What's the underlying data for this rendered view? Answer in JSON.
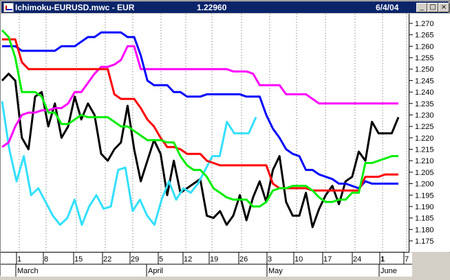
{
  "window": {
    "title": "Ichimoku-EURUSD.mwc - EUR",
    "last_price": "1.22960",
    "date": "6/4/04",
    "buttons": {
      "minimize": "_",
      "maximize": "□",
      "close": "×"
    }
  },
  "chart_data": {
    "type": "line",
    "grid": true,
    "ylim": [
      1.17,
      1.275
    ],
    "y_ticks": [
      "1.270",
      "1.265",
      "1.260",
      "1.255",
      "1.250",
      "1.245",
      "1.240",
      "1.235",
      "1.230",
      "1.225",
      "1.220",
      "1.215",
      "1.210",
      "1.205",
      "1.200",
      "1.195",
      "1.190",
      "1.185",
      "1.180",
      "1.175"
    ],
    "x_day_labels": [
      "1",
      "8",
      "15",
      "22",
      "29",
      "5",
      "12",
      "19",
      "26",
      "3",
      "10",
      "17",
      "24",
      "1",
      "7"
    ],
    "x_month_labels": [
      "March",
      "April",
      "May",
      "June"
    ],
    "series": [
      {
        "color": "#000000",
        "values": [
          1.245,
          1.248,
          1.245,
          1.22,
          1.215,
          1.238,
          1.24,
          1.225,
          1.235,
          1.22,
          1.225,
          1.238,
          1.228,
          1.235,
          1.23,
          1.213,
          1.21,
          1.215,
          1.218,
          1.234,
          1.215,
          1.201,
          1.21,
          1.219,
          1.213,
          1.195,
          1.21,
          1.196,
          1.198,
          1.2,
          1.202,
          1.186,
          1.185,
          1.188,
          1.182,
          1.186,
          1.195,
          1.184,
          1.194,
          1.201,
          1.192,
          1.206,
          1.212,
          1.192,
          1.186,
          1.186,
          1.196,
          1.181,
          1.189,
          1.195,
          1.199,
          1.191,
          1.201,
          1.203,
          1.214,
          1.21,
          1.227,
          1.222,
          1.222,
          1.222,
          1.229
        ]
      },
      {
        "color": "#33e0ff",
        "values": [
          1.236,
          1.215,
          1.201,
          1.212,
          1.195,
          1.198,
          1.192,
          1.186,
          1.182,
          1.185,
          1.193,
          1.182,
          1.19,
          1.195,
          1.189,
          1.19,
          1.206,
          1.207,
          1.188,
          1.193,
          1.186,
          1.182,
          1.193,
          1.201,
          1.193,
          1.198,
          1.196,
          1.2,
          1.206,
          1.212,
          1.212,
          1.227,
          1.222,
          1.222,
          1.222,
          1.229
        ]
      },
      {
        "color": "#ff00ff",
        "values": [
          1.216,
          1.218,
          1.225,
          1.23,
          1.231,
          1.231,
          1.232,
          1.232,
          1.233,
          1.233,
          1.235,
          1.24,
          1.24,
          1.244,
          1.248,
          1.251,
          1.251,
          1.252,
          1.254,
          1.26,
          1.26,
          1.25,
          1.25,
          1.25,
          1.25,
          1.25,
          1.25,
          1.25,
          1.25,
          1.25,
          1.25,
          1.25,
          1.25,
          1.25,
          1.25,
          1.249,
          1.249,
          1.249,
          1.248,
          1.243,
          1.243,
          1.243,
          1.243,
          1.239,
          1.239,
          1.239,
          1.239,
          1.237,
          1.235,
          1.235,
          1.235,
          1.235,
          1.235,
          1.235,
          1.235,
          1.235,
          1.235,
          1.235,
          1.235,
          1.235,
          1.235
        ]
      },
      {
        "color": "#0000ff",
        "values": [
          1.26,
          1.26,
          1.26,
          1.258,
          1.258,
          1.258,
          1.258,
          1.258,
          1.258,
          1.26,
          1.26,
          1.26,
          1.262,
          1.264,
          1.264,
          1.266,
          1.266,
          1.266,
          1.266,
          1.264,
          1.264,
          1.256,
          1.245,
          1.243,
          1.243,
          1.243,
          1.24,
          1.24,
          1.238,
          1.238,
          1.238,
          1.239,
          1.239,
          1.239,
          1.239,
          1.239,
          1.239,
          1.238,
          1.238,
          1.238,
          1.23,
          1.224,
          1.22,
          1.215,
          1.213,
          1.212,
          1.206,
          1.206,
          1.204,
          1.203,
          1.202,
          1.2,
          1.2,
          1.199,
          1.198,
          1.201,
          1.2,
          1.2,
          1.2,
          1.2,
          1.2
        ]
      },
      {
        "color": "#ff0000",
        "values": [
          1.263,
          1.263,
          1.263,
          1.253,
          1.25,
          1.25,
          1.25,
          1.25,
          1.25,
          1.25,
          1.25,
          1.25,
          1.25,
          1.25,
          1.25,
          1.25,
          1.25,
          1.239,
          1.237,
          1.237,
          1.237,
          1.233,
          1.228,
          1.225,
          1.22,
          1.216,
          1.216,
          1.215,
          1.213,
          1.213,
          1.213,
          1.21,
          1.209,
          1.208,
          1.208,
          1.208,
          1.208,
          1.208,
          1.208,
          1.208,
          1.208,
          1.2,
          1.198,
          1.198,
          1.198,
          1.198,
          1.198,
          1.197,
          1.197,
          1.197,
          1.197,
          1.197,
          1.197,
          1.197,
          1.197,
          1.203,
          1.203,
          1.203,
          1.204,
          1.204,
          1.204
        ]
      },
      {
        "color": "#00ee00",
        "values": [
          1.267,
          1.264,
          1.255,
          1.24,
          1.24,
          1.24,
          1.238,
          1.231,
          1.231,
          1.226,
          1.226,
          1.228,
          1.23,
          1.229,
          1.229,
          1.229,
          1.229,
          1.227,
          1.225,
          1.225,
          1.223,
          1.221,
          1.219,
          1.219,
          1.219,
          1.218,
          1.218,
          1.212,
          1.208,
          1.206,
          1.206,
          1.203,
          1.198,
          1.196,
          1.194,
          1.193,
          1.193,
          1.193,
          1.19,
          1.19,
          1.192,
          1.197,
          1.198,
          1.198,
          1.199,
          1.199,
          1.199,
          1.197,
          1.194,
          1.192,
          1.192,
          1.193,
          1.193,
          1.196,
          1.196,
          1.209,
          1.209,
          1.21,
          1.211,
          1.212,
          1.212
        ]
      }
    ]
  }
}
